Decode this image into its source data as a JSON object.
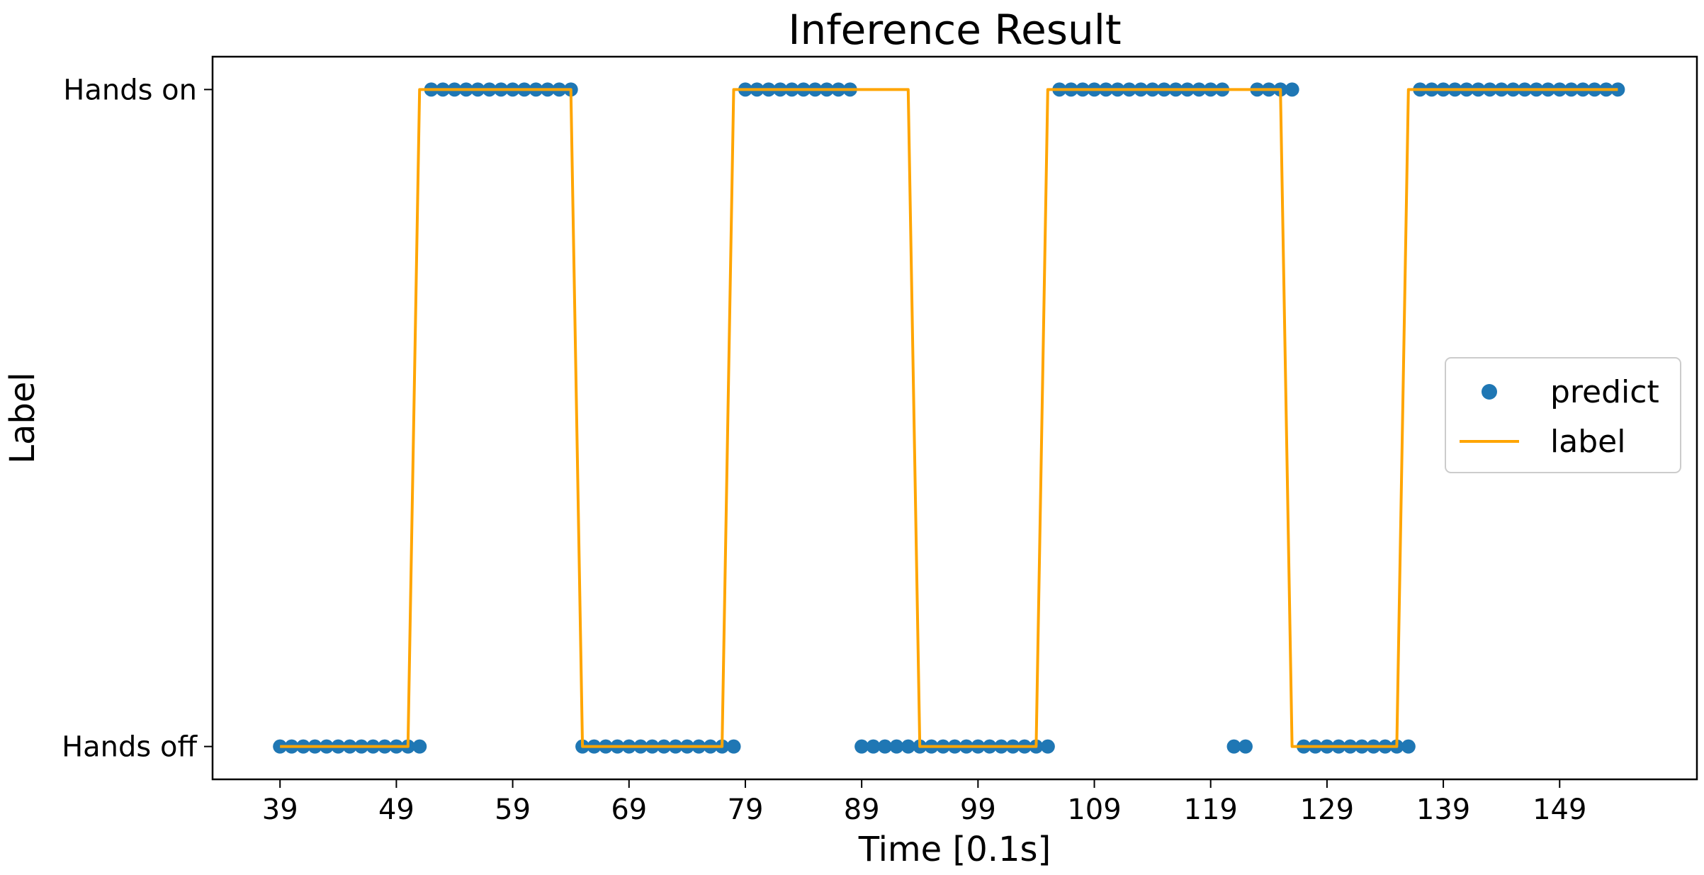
{
  "chart_data": {
    "type": "scatter",
    "title": "Inference Result",
    "xlabel": "Time [0.1s]",
    "ylabel": "Label",
    "xlim": [
      33.2,
      160.8
    ],
    "ylim": [
      -0.05,
      1.05
    ],
    "x_ticks": [
      39,
      49,
      59,
      69,
      79,
      89,
      99,
      109,
      119,
      129,
      139,
      149
    ],
    "x_tick_labels": [
      "39",
      "49",
      "59",
      "69",
      "79",
      "89",
      "99",
      "109",
      "119",
      "129",
      "139",
      "149"
    ],
    "y_ticks": [
      0,
      1
    ],
    "y_tick_labels": [
      "Hands off",
      "Hands on"
    ],
    "grid": false,
    "legend": {
      "position": "right",
      "entries": [
        {
          "label": "predict",
          "marker": "circle",
          "color": "#1f77b4"
        },
        {
          "label": "label",
          "marker": "line",
          "color": "#ffa500"
        }
      ]
    },
    "series": [
      {
        "name": "predict",
        "kind": "points",
        "color": "#1f77b4",
        "points": [
          [
            39,
            0
          ],
          [
            40,
            0
          ],
          [
            41,
            0
          ],
          [
            42,
            0
          ],
          [
            43,
            0
          ],
          [
            44,
            0
          ],
          [
            45,
            0
          ],
          [
            46,
            0
          ],
          [
            47,
            0
          ],
          [
            48,
            0
          ],
          [
            49,
            0
          ],
          [
            50,
            0
          ],
          [
            51,
            0
          ],
          [
            52,
            1
          ],
          [
            53,
            1
          ],
          [
            54,
            1
          ],
          [
            55,
            1
          ],
          [
            56,
            1
          ],
          [
            57,
            1
          ],
          [
            58,
            1
          ],
          [
            59,
            1
          ],
          [
            60,
            1
          ],
          [
            61,
            1
          ],
          [
            62,
            1
          ],
          [
            63,
            1
          ],
          [
            64,
            1
          ],
          [
            65,
            0
          ],
          [
            66,
            0
          ],
          [
            67,
            0
          ],
          [
            68,
            0
          ],
          [
            69,
            0
          ],
          [
            70,
            0
          ],
          [
            71,
            0
          ],
          [
            72,
            0
          ],
          [
            73,
            0
          ],
          [
            74,
            0
          ],
          [
            75,
            0
          ],
          [
            76,
            0
          ],
          [
            77,
            0
          ],
          [
            78,
            0
          ],
          [
            79,
            1
          ],
          [
            80,
            1
          ],
          [
            81,
            1
          ],
          [
            82,
            1
          ],
          [
            83,
            1
          ],
          [
            84,
            1
          ],
          [
            85,
            1
          ],
          [
            86,
            1
          ],
          [
            87,
            1
          ],
          [
            88,
            1
          ],
          [
            89,
            0
          ],
          [
            90,
            0
          ],
          [
            91,
            0
          ],
          [
            92,
            0
          ],
          [
            93,
            0
          ],
          [
            94,
            0
          ],
          [
            95,
            0
          ],
          [
            96,
            0
          ],
          [
            97,
            0
          ],
          [
            98,
            0
          ],
          [
            99,
            0
          ],
          [
            100,
            0
          ],
          [
            101,
            0
          ],
          [
            102,
            0
          ],
          [
            103,
            0
          ],
          [
            104,
            0
          ],
          [
            105,
            0
          ],
          [
            106,
            1
          ],
          [
            107,
            1
          ],
          [
            108,
            1
          ],
          [
            109,
            1
          ],
          [
            110,
            1
          ],
          [
            111,
            1
          ],
          [
            112,
            1
          ],
          [
            113,
            1
          ],
          [
            114,
            1
          ],
          [
            115,
            1
          ],
          [
            116,
            1
          ],
          [
            117,
            1
          ],
          [
            118,
            1
          ],
          [
            119,
            1
          ],
          [
            120,
            1
          ],
          [
            121,
            0
          ],
          [
            122,
            0
          ],
          [
            123,
            1
          ],
          [
            124,
            1
          ],
          [
            125,
            1
          ],
          [
            126,
            1
          ],
          [
            127,
            0
          ],
          [
            128,
            0
          ],
          [
            129,
            0
          ],
          [
            130,
            0
          ],
          [
            131,
            0
          ],
          [
            132,
            0
          ],
          [
            133,
            0
          ],
          [
            134,
            0
          ],
          [
            135,
            0
          ],
          [
            136,
            0
          ],
          [
            137,
            1
          ],
          [
            138,
            1
          ],
          [
            139,
            1
          ],
          [
            140,
            1
          ],
          [
            141,
            1
          ],
          [
            142,
            1
          ],
          [
            143,
            1
          ],
          [
            144,
            1
          ],
          [
            145,
            1
          ],
          [
            146,
            1
          ],
          [
            147,
            1
          ],
          [
            148,
            1
          ],
          [
            149,
            1
          ],
          [
            150,
            1
          ],
          [
            151,
            1
          ],
          [
            152,
            1
          ],
          [
            153,
            1
          ],
          [
            154,
            1
          ]
        ]
      },
      {
        "name": "label",
        "kind": "line",
        "color": "#ffa500",
        "points": [
          [
            39,
            0
          ],
          [
            50,
            0
          ],
          [
            51,
            1
          ],
          [
            64,
            1
          ],
          [
            65,
            0
          ],
          [
            77,
            0
          ],
          [
            78,
            1
          ],
          [
            93,
            1
          ],
          [
            94,
            0
          ],
          [
            104,
            0
          ],
          [
            105,
            1
          ],
          [
            125,
            1
          ],
          [
            126,
            0
          ],
          [
            135,
            0
          ],
          [
            136,
            1
          ],
          [
            154,
            1
          ]
        ]
      }
    ]
  }
}
